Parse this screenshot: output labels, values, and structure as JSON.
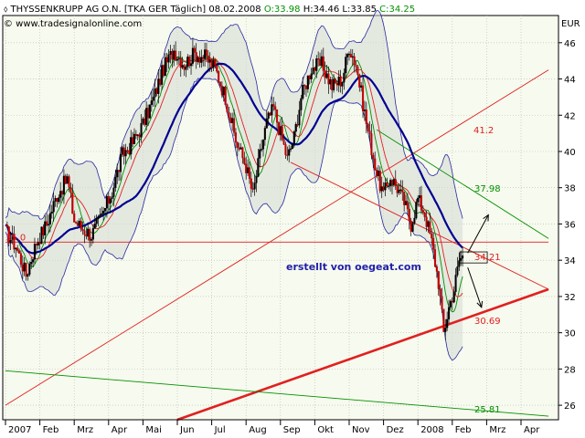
{
  "header": {
    "title": "THYSSENKRUPP AG O.N. [TKA GER  Täglich] 08.02.2008 ",
    "ohlc": [
      {
        "text": "O:33.98",
        "color": "#009000"
      },
      {
        "text": " H:34.46",
        "color": "#000000"
      },
      {
        "text": " L:33.85",
        "color": "#000000"
      },
      {
        "text": " C:34.25",
        "color": "#009000"
      }
    ],
    "copyright": "© www.tradesignalonline.com"
  },
  "colors": {
    "background": "#ffffff",
    "plot_background": "#f7faee",
    "price_up": "#000000",
    "price_down": "#c00000",
    "sma_fast": "#009000",
    "sma_mid": "#e02020",
    "sma_slow": "#000090",
    "bollinger": "#2828a0",
    "bollinger_fill": "#d6dbd6",
    "red_line": "#e02020",
    "green_line": "#009000",
    "arrow": "#000000"
  },
  "watermark": "erstellt von oegeat.com",
  "chart_data": {
    "type": "line",
    "title": "THYSSENKRUPP AG O.N. [TKA GER  Täglich] 08.02.2008",
    "xlabel": "",
    "ylabel": "EUR",
    "x_tick_labels": [
      "2007",
      "Feb",
      "Mrz",
      "Apr",
      "Mai",
      "Jun",
      "Jul",
      "Aug",
      "Sep",
      "Okt",
      "Nov",
      "Dez",
      "2008",
      "Feb",
      "Mrz",
      "Apr"
    ],
    "y_ticks": [
      26,
      28,
      30,
      32,
      34,
      36,
      38,
      40,
      42,
      44,
      46
    ],
    "ylim": [
      25.2,
      47.5
    ],
    "grid": "dotted",
    "last_bar": {
      "date": "08.02.2008",
      "open": 33.98,
      "high": 34.46,
      "low": 33.85,
      "close": 34.25
    },
    "price_path_approx": [
      {
        "x": 0.0,
        "y": 35.6
      },
      {
        "x": 0.3,
        "y": 34.8
      },
      {
        "x": 0.6,
        "y": 33.2
      },
      {
        "x": 0.9,
        "y": 35.0
      },
      {
        "x": 1.2,
        "y": 36.0
      },
      {
        "x": 1.5,
        "y": 37.6
      },
      {
        "x": 1.8,
        "y": 38.5
      },
      {
        "x": 2.0,
        "y": 36.2
      },
      {
        "x": 2.2,
        "y": 35.8
      },
      {
        "x": 2.5,
        "y": 35.4
      },
      {
        "x": 2.8,
        "y": 36.4
      },
      {
        "x": 3.1,
        "y": 37.8
      },
      {
        "x": 3.4,
        "y": 39.8
      },
      {
        "x": 3.7,
        "y": 40.5
      },
      {
        "x": 4.0,
        "y": 41.5
      },
      {
        "x": 4.3,
        "y": 42.9
      },
      {
        "x": 4.6,
        "y": 44.6
      },
      {
        "x": 4.9,
        "y": 45.6
      },
      {
        "x": 5.2,
        "y": 44.8
      },
      {
        "x": 5.5,
        "y": 45.4
      },
      {
        "x": 5.8,
        "y": 45.2
      },
      {
        "x": 6.1,
        "y": 44.6
      },
      {
        "x": 6.4,
        "y": 43.0
      },
      {
        "x": 6.7,
        "y": 40.6
      },
      {
        "x": 7.0,
        "y": 39.2
      },
      {
        "x": 7.2,
        "y": 37.6
      },
      {
        "x": 7.4,
        "y": 39.8
      },
      {
        "x": 7.6,
        "y": 41.6
      },
      {
        "x": 7.8,
        "y": 42.4
      },
      {
        "x": 8.0,
        "y": 41.0
      },
      {
        "x": 8.2,
        "y": 39.6
      },
      {
        "x": 8.4,
        "y": 40.8
      },
      {
        "x": 8.6,
        "y": 43.0
      },
      {
        "x": 8.9,
        "y": 44.6
      },
      {
        "x": 9.2,
        "y": 44.8
      },
      {
        "x": 9.5,
        "y": 43.6
      },
      {
        "x": 9.8,
        "y": 44.0
      },
      {
        "x": 10.0,
        "y": 45.8
      },
      {
        "x": 10.2,
        "y": 44.8
      },
      {
        "x": 10.5,
        "y": 41.6
      },
      {
        "x": 10.8,
        "y": 38.8
      },
      {
        "x": 11.0,
        "y": 37.6
      },
      {
        "x": 11.2,
        "y": 38.6
      },
      {
        "x": 11.4,
        "y": 38.0
      },
      {
        "x": 11.6,
        "y": 37.2
      },
      {
        "x": 11.8,
        "y": 36.0
      },
      {
        "x": 12.0,
        "y": 37.4
      },
      {
        "x": 12.2,
        "y": 36.6
      },
      {
        "x": 12.4,
        "y": 35.0
      },
      {
        "x": 12.6,
        "y": 32.8
      },
      {
        "x": 12.75,
        "y": 30.0
      },
      {
        "x": 12.9,
        "y": 31.4
      },
      {
        "x": 13.05,
        "y": 32.4
      },
      {
        "x": 13.2,
        "y": 34.0
      },
      {
        "x": 13.3,
        "y": 34.25
      }
    ],
    "horizontal_levels": [
      {
        "label": "41.2",
        "value": 41.2,
        "color": "#e02020"
      },
      {
        "label": "37.98",
        "value": 37.98,
        "color": "#009000"
      },
      {
        "label": "34.21",
        "value": 34.21,
        "color": "#e02020"
      },
      {
        "label": "30.69",
        "value": 30.69,
        "color": "#e02020"
      },
      {
        "label": "25.81",
        "value": 25.81,
        "color": "#009000"
      }
    ],
    "left_level_label": "35.0",
    "trendlines": [
      {
        "color": "#e02020",
        "style": "thin",
        "from": {
          "x": 0.0,
          "y": 26.0
        },
        "to": {
          "x": 15.8,
          "y": 44.5
        }
      },
      {
        "color": "#e02020",
        "style": "thick",
        "from": {
          "x": 5.0,
          "y": 25.2
        },
        "to": {
          "x": 15.8,
          "y": 32.4
        }
      },
      {
        "color": "#e02020",
        "style": "thin",
        "from": {
          "x": 0.0,
          "y": 35.0
        },
        "to": {
          "x": 15.8,
          "y": 35.0
        }
      },
      {
        "color": "#e02020",
        "style": "thin",
        "from": {
          "x": 8.3,
          "y": 39.4
        },
        "to": {
          "x": 15.8,
          "y": 32.4
        }
      },
      {
        "color": "#009000",
        "style": "thin",
        "from": {
          "x": 10.8,
          "y": 41.2
        },
        "to": {
          "x": 15.8,
          "y": 35.2
        }
      },
      {
        "color": "#009000",
        "style": "thin",
        "from": {
          "x": 0.0,
          "y": 27.9
        },
        "to": {
          "x": 15.8,
          "y": 25.4
        }
      }
    ],
    "arrows": [
      {
        "from": {
          "x": 13.45,
          "y": 34.4
        },
        "to": {
          "x": 14.05,
          "y": 36.5
        }
      },
      {
        "from": {
          "x": 13.45,
          "y": 33.6
        },
        "to": {
          "x": 13.85,
          "y": 31.4
        }
      }
    ]
  }
}
